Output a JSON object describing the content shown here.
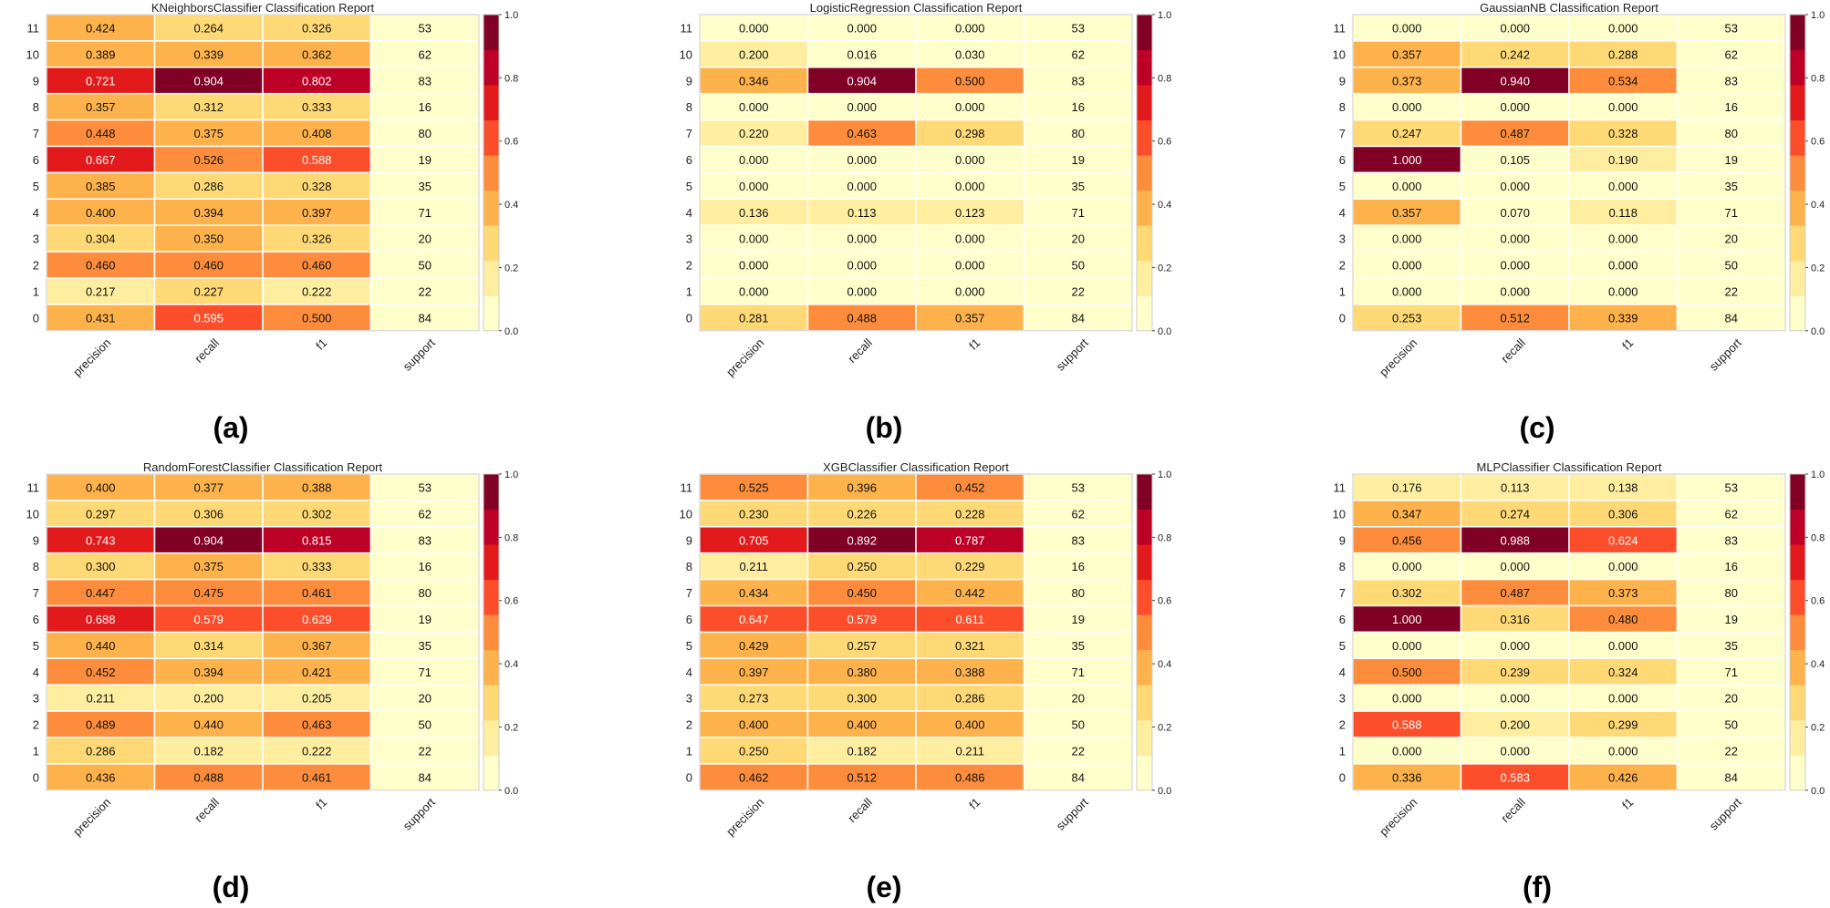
{
  "figure": {
    "row_labels": [
      "11",
      "10",
      "9",
      "8",
      "7",
      "6",
      "5",
      "4",
      "3",
      "2",
      "1",
      "0"
    ],
    "col_labels": [
      "precision",
      "recall",
      "f1",
      "support"
    ],
    "colorbar_ticks": [
      "1.0",
      "0.8",
      "0.6",
      "0.4",
      "0.2",
      "0.0"
    ],
    "colorbar_colors": [
      "#ffffcc",
      "#ffeda0",
      "#fed976",
      "#feb24c",
      "#fd8d3c",
      "#fc4e2a",
      "#e31a1c",
      "#bd0026",
      "#800026"
    ],
    "panel_labels": [
      "(a)",
      "(b)",
      "(c)",
      "(d)",
      "(e)",
      "(f)"
    ]
  },
  "chart_data": [
    {
      "type": "heatmap",
      "title": "KNeighborsClassifier Classification Report",
      "precision": [
        "0.424",
        "0.389",
        "0.721",
        "0.357",
        "0.448",
        "0.667",
        "0.385",
        "0.400",
        "0.304",
        "0.460",
        "0.217",
        "0.431"
      ],
      "recall": [
        "0.264",
        "0.339",
        "0.904",
        "0.312",
        "0.375",
        "0.526",
        "0.286",
        "0.394",
        "0.350",
        "0.460",
        "0.227",
        "0.595"
      ],
      "f1": [
        "0.326",
        "0.362",
        "0.802",
        "0.333",
        "0.408",
        "0.588",
        "0.328",
        "0.397",
        "0.326",
        "0.460",
        "0.222",
        "0.500"
      ],
      "support": [
        "53",
        "62",
        "83",
        "16",
        "80",
        "19",
        "35",
        "71",
        "20",
        "50",
        "22",
        "84"
      ]
    },
    {
      "type": "heatmap",
      "title": "LogisticRegression Classification Report",
      "precision": [
        "0.000",
        "0.200",
        "0.346",
        "0.000",
        "0.220",
        "0.000",
        "0.000",
        "0.136",
        "0.000",
        "0.000",
        "0.000",
        "0.281"
      ],
      "recall": [
        "0.000",
        "0.016",
        "0.904",
        "0.000",
        "0.463",
        "0.000",
        "0.000",
        "0.113",
        "0.000",
        "0.000",
        "0.000",
        "0.488"
      ],
      "f1": [
        "0.000",
        "0.030",
        "0.500",
        "0.000",
        "0.298",
        "0.000",
        "0.000",
        "0.123",
        "0.000",
        "0.000",
        "0.000",
        "0.357"
      ],
      "support": [
        "53",
        "62",
        "83",
        "16",
        "80",
        "19",
        "35",
        "71",
        "20",
        "50",
        "22",
        "84"
      ]
    },
    {
      "type": "heatmap",
      "title": "GaussianNB Classification Report",
      "precision": [
        "0.000",
        "0.357",
        "0.373",
        "0.000",
        "0.247",
        "1.000",
        "0.000",
        "0.357",
        "0.000",
        "0.000",
        "0.000",
        "0.253"
      ],
      "recall": [
        "0.000",
        "0.242",
        "0.940",
        "0.000",
        "0.487",
        "0.105",
        "0.000",
        "0.070",
        "0.000",
        "0.000",
        "0.000",
        "0.512"
      ],
      "f1": [
        "0.000",
        "0.288",
        "0.534",
        "0.000",
        "0.328",
        "0.190",
        "0.000",
        "0.118",
        "0.000",
        "0.000",
        "0.000",
        "0.339"
      ],
      "support": [
        "53",
        "62",
        "83",
        "16",
        "80",
        "19",
        "35",
        "71",
        "20",
        "50",
        "22",
        "84"
      ]
    },
    {
      "type": "heatmap",
      "title": "RandomForestClassifier Classification Report",
      "precision": [
        "0.400",
        "0.297",
        "0.743",
        "0.300",
        "0.447",
        "0.688",
        "0.440",
        "0.452",
        "0.211",
        "0.489",
        "0.286",
        "0.436"
      ],
      "recall": [
        "0.377",
        "0.306",
        "0.904",
        "0.375",
        "0.475",
        "0.579",
        "0.314",
        "0.394",
        "0.200",
        "0.440",
        "0.182",
        "0.488"
      ],
      "f1": [
        "0.388",
        "0.302",
        "0.815",
        "0.333",
        "0.461",
        "0.629",
        "0.367",
        "0.421",
        "0.205",
        "0.463",
        "0.222",
        "0.461"
      ],
      "support": [
        "53",
        "62",
        "83",
        "16",
        "80",
        "19",
        "35",
        "71",
        "20",
        "50",
        "22",
        "84"
      ]
    },
    {
      "type": "heatmap",
      "title": "XGBClassifier Classification Report",
      "precision": [
        "0.525",
        "0.230",
        "0.705",
        "0.211",
        "0.434",
        "0.647",
        "0.429",
        "0.397",
        "0.273",
        "0.400",
        "0.250",
        "0.462"
      ],
      "recall": [
        "0.396",
        "0.226",
        "0.892",
        "0.250",
        "0.450",
        "0.579",
        "0.257",
        "0.380",
        "0.300",
        "0.400",
        "0.182",
        "0.512"
      ],
      "f1": [
        "0.452",
        "0.228",
        "0.787",
        "0.229",
        "0.442",
        "0.611",
        "0.321",
        "0.388",
        "0.286",
        "0.400",
        "0.211",
        "0.486"
      ],
      "support": [
        "53",
        "62",
        "83",
        "16",
        "80",
        "19",
        "35",
        "71",
        "20",
        "50",
        "22",
        "84"
      ]
    },
    {
      "type": "heatmap",
      "title": "MLPClassifier Classification Report",
      "precision": [
        "0.176",
        "0.347",
        "0.456",
        "0.000",
        "0.302",
        "1.000",
        "0.000",
        "0.500",
        "0.000",
        "0.588",
        "0.000",
        "0.336"
      ],
      "recall": [
        "0.113",
        "0.274",
        "0.988",
        "0.000",
        "0.487",
        "0.316",
        "0.000",
        "0.239",
        "0.000",
        "0.200",
        "0.000",
        "0.583"
      ],
      "f1": [
        "0.138",
        "0.306",
        "0.624",
        "0.000",
        "0.373",
        "0.480",
        "0.000",
        "0.324",
        "0.000",
        "0.299",
        "0.000",
        "0.426"
      ],
      "support": [
        "53",
        "62",
        "83",
        "16",
        "80",
        "19",
        "35",
        "71",
        "20",
        "50",
        "22",
        "84"
      ]
    }
  ]
}
